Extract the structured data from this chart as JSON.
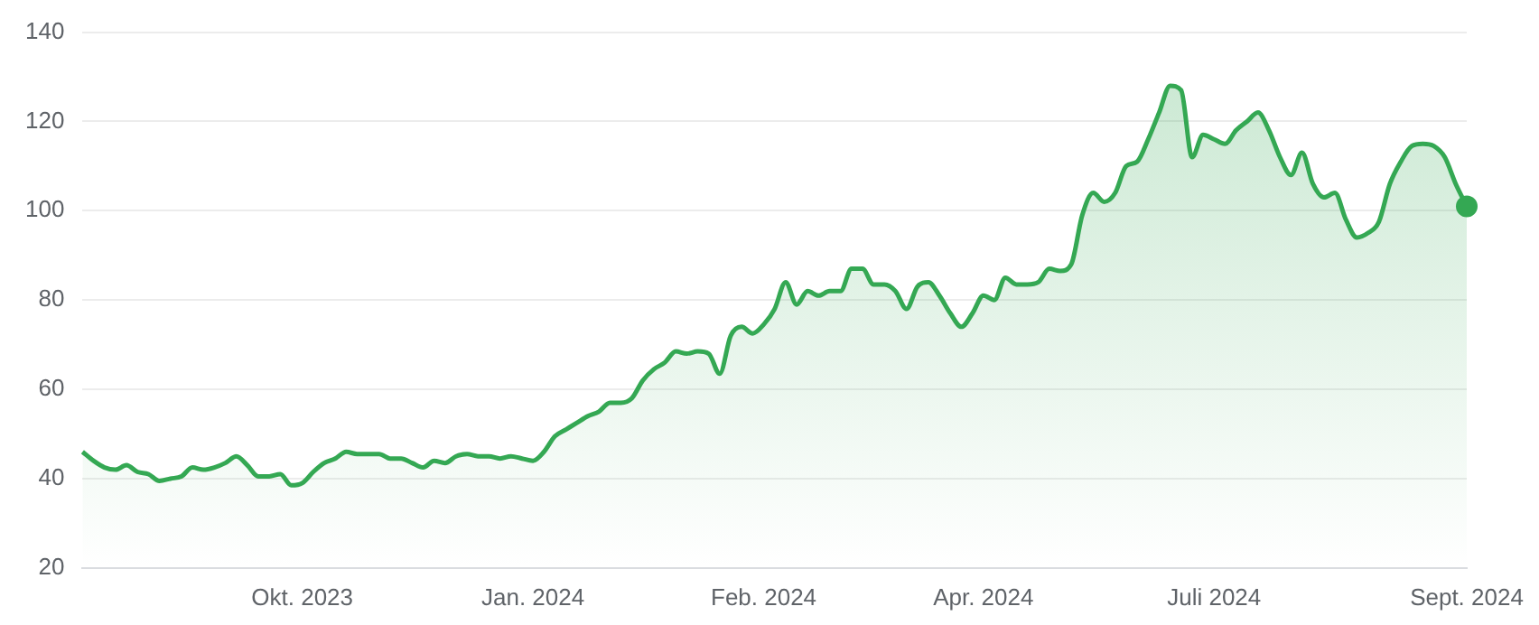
{
  "chart_data": {
    "type": "area",
    "categories": [
      null,
      null,
      null,
      null,
      null,
      null,
      null,
      null,
      null,
      null,
      null,
      null,
      null,
      null,
      null,
      null,
      null,
      null,
      null,
      null,
      "Okt. 2023",
      null,
      null,
      null,
      null,
      null,
      null,
      null,
      null,
      null,
      null,
      null,
      null,
      null,
      null,
      null,
      null,
      null,
      null,
      null,
      null,
      "Jan. 2024",
      null,
      null,
      null,
      null,
      null,
      null,
      null,
      null,
      null,
      null,
      null,
      null,
      null,
      null,
      null,
      null,
      null,
      null,
      null,
      null,
      "Feb. 2024",
      null,
      null,
      null,
      null,
      null,
      null,
      null,
      null,
      null,
      null,
      null,
      null,
      null,
      null,
      null,
      null,
      null,
      null,
      null,
      "Apr. 2024",
      null,
      null,
      null,
      null,
      null,
      null,
      null,
      null,
      null,
      null,
      null,
      null,
      null,
      null,
      null,
      null,
      null,
      null,
      null,
      null,
      "Juli 2024",
      null,
      null,
      null,
      null,
      null,
      null,
      null,
      null,
      null,
      null,
      null,
      null,
      null,
      null,
      null,
      null,
      null,
      null,
      null,
      null,
      null,
      null,
      "Sept. 2024"
    ],
    "series": [
      {
        "color": "#34a853",
        "values": [
          46,
          44,
          42.5,
          42,
          43,
          41.5,
          41,
          39.5,
          40,
          40.5,
          42.5,
          42,
          42.5,
          43.5,
          45,
          43,
          40.5,
          40.5,
          41,
          38.5,
          39,
          41.5,
          43.5,
          44.5,
          46,
          45.5,
          45.5,
          45.5,
          44.5,
          44.5,
          43.5,
          42.5,
          44,
          43.5,
          45,
          45.5,
          45,
          45,
          44.5,
          45,
          44.5,
          44,
          46,
          49.5,
          51,
          52.5,
          54,
          55,
          57,
          57,
          58,
          62,
          64.5,
          66,
          68.5,
          68,
          68.5,
          68,
          63.5,
          72,
          74,
          72.5,
          74.5,
          78,
          84,
          79,
          82,
          81,
          82,
          82,
          87,
          87,
          83.5,
          83.5,
          82,
          78,
          83,
          84,
          81,
          77,
          74,
          77,
          81,
          80,
          85,
          83.5,
          83.5,
          84,
          87,
          86.5,
          88,
          99,
          104,
          102,
          104,
          110,
          111,
          116,
          122,
          128,
          127,
          112,
          117,
          116,
          115,
          118,
          120,
          122,
          118,
          112,
          108,
          113,
          106,
          103,
          104,
          98,
          94,
          95,
          97.5,
          106,
          111,
          114.5,
          115,
          114.5,
          112,
          106,
          101
        ]
      }
    ],
    "ylim": [
      20,
      140
    ],
    "yticks": [
      20,
      40,
      60,
      80,
      100,
      120,
      140
    ],
    "grid": "y",
    "legend": false
  }
}
